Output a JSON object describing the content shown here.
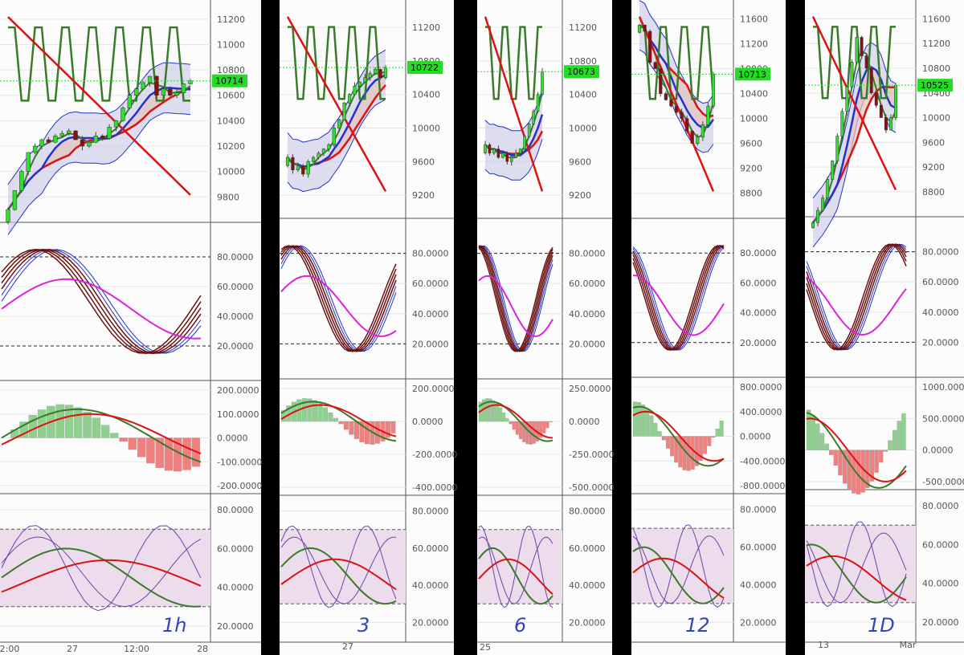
{
  "colors": {
    "background": "#000000",
    "panel": "#fcfcfc",
    "grid": "#e6e6e6",
    "text": "#555555",
    "green_candle": "#2ee02e",
    "red_candle": "#8b0f0f",
    "price_tag": "#22dd22",
    "green_line": "#3a7a2a",
    "red_line": "#dd1111",
    "blue_line": "#2233cc",
    "band_fill": "#c8c8e6",
    "ma_fill": "#e6c3bd",
    "osc_magenta": "#dd22dd",
    "osc_brown": "#6a1010",
    "hist_green": "#8fd08f",
    "hist_red": "#f08080",
    "hist_shadow": "#c98a80",
    "rsi_fill": "#ecdcec",
    "annotation": "#3344bb"
  },
  "charts": [
    {
      "id": "chart1",
      "timeframe_label": "1h",
      "x_ticks": [
        "2:00",
        "27",
        "12:00",
        "28"
      ],
      "price": {
        "ticks": [
          "11200",
          "11000",
          "10800",
          "10600",
          "10400",
          "10200",
          "10000",
          "9800"
        ],
        "current": "10714",
        "min": 9650,
        "max": 11300
      },
      "stoch": {
        "ticks": [
          "80.0000",
          "60.0000",
          "40.0000",
          "20.0000"
        ]
      },
      "macd": {
        "ticks": [
          "200.0000",
          "100.0000",
          "0.0000",
          "-100.0000",
          "-200.0000"
        ]
      },
      "rsi": {
        "ticks": [
          "80.0000",
          "60.0000",
          "40.0000",
          "20.0000"
        ]
      }
    },
    {
      "id": "chart2",
      "timeframe_label": "3",
      "x_ticks": [
        "27"
      ],
      "price": {
        "ticks": [
          "11200",
          "10800",
          "10400",
          "10000",
          "9600",
          "9200"
        ],
        "current": "10722",
        "min": 9000,
        "max": 11450
      },
      "stoch": {
        "ticks": [
          "80.0000",
          "60.0000",
          "40.0000",
          "20.0000"
        ]
      },
      "macd": {
        "ticks": [
          "200.0000",
          "0.0000",
          "-200.0000",
          "-400.0000"
        ]
      },
      "rsi": {
        "ticks": [
          "80.0000",
          "60.0000",
          "40.0000",
          "20.0000"
        ]
      }
    },
    {
      "id": "chart3",
      "timeframe_label": "6",
      "x_ticks": [
        "25"
      ],
      "price": {
        "ticks": [
          "11200",
          "10800",
          "10400",
          "10000",
          "9600",
          "9200"
        ],
        "current": "10673",
        "min": 9000,
        "max": 11450
      },
      "stoch": {
        "ticks": [
          "80.0000",
          "60.0000",
          "40.0000",
          "20.0000"
        ]
      },
      "macd": {
        "ticks": [
          "250.0000",
          "0.0000",
          "-250.0000",
          "-500.0000"
        ]
      },
      "rsi": {
        "ticks": [
          "80.0000",
          "60.0000",
          "40.0000",
          "20.0000"
        ]
      }
    },
    {
      "id": "chart4",
      "timeframe_label": "12",
      "x_ticks": [],
      "price": {
        "ticks": [
          "11600",
          "11200",
          "10800",
          "10400",
          "10000",
          "9600",
          "9200",
          "8800"
        ],
        "current": "10713",
        "min": 8500,
        "max": 11800
      },
      "stoch": {
        "ticks": [
          "80.0000",
          "60.0000",
          "40.0000",
          "20.0000"
        ]
      },
      "macd": {
        "ticks": [
          "800.0000",
          "400.0000",
          "0.0000",
          "-400.0000",
          "-800.0000"
        ]
      },
      "rsi": {
        "ticks": [
          "80.0000",
          "60.0000",
          "40.0000",
          "20.0000"
        ]
      }
    },
    {
      "id": "chart5",
      "timeframe_label": "1D",
      "x_ticks": [
        "13",
        "Mar"
      ],
      "price": {
        "ticks": [
          "11600",
          "11200",
          "10800",
          "10400",
          "10000",
          "9600",
          "9200",
          "8800"
        ],
        "current": "10525",
        "min": 8500,
        "max": 11800
      },
      "stoch": {
        "ticks": [
          "80.0000",
          "60.0000",
          "40.0000",
          "20.0000"
        ]
      },
      "macd": {
        "ticks": [
          "1000.0000",
          "500.0000",
          "0.0000",
          "-500.0000"
        ]
      },
      "rsi": {
        "ticks": [
          "80.0000",
          "60.0000",
          "40.0000",
          "20.0000"
        ]
      }
    }
  ],
  "chart_data": [
    {
      "type": "line",
      "timeframe": "1h",
      "price_last": 10714,
      "ylim": [
        9650,
        11300
      ],
      "close": [
        9700,
        9850,
        10000,
        10150,
        10200,
        10250,
        10230,
        10280,
        10300,
        10320,
        10250,
        10200,
        10230,
        10280,
        10260,
        10350,
        10400,
        10500,
        10600,
        10650,
        10700,
        10750,
        10600,
        10650,
        10600,
        10620,
        10690,
        10714
      ]
    },
    {
      "type": "line",
      "timeframe": "3h",
      "price_last": 10722,
      "ylim": [
        9000,
        11450
      ],
      "close": [
        9650,
        9500,
        9550,
        9450,
        9600,
        9650,
        9700,
        9750,
        9800,
        10000,
        10100,
        10300,
        10400,
        10500,
        10550,
        10600,
        10650,
        10700,
        10600,
        10722
      ]
    },
    {
      "type": "line",
      "timeframe": "6h",
      "price_last": 10673,
      "ylim": [
        9000,
        11450
      ],
      "close": [
        9800,
        9700,
        9750,
        9650,
        9700,
        9600,
        9650,
        9700,
        9750,
        9900,
        10050,
        10200,
        10400,
        10673
      ]
    },
    {
      "type": "line",
      "timeframe": "12h",
      "price_last": 10713,
      "ylim": [
        8500,
        11800
      ],
      "close": [
        11500,
        11400,
        10900,
        10800,
        10400,
        10300,
        10200,
        10100,
        10000,
        9800,
        9600,
        9700,
        9900,
        10200,
        10713
      ]
    },
    {
      "type": "line",
      "timeframe": "1D",
      "price_last": 10525,
      "ylim": [
        8500,
        11800
      ],
      "close": [
        8300,
        8500,
        8700,
        9000,
        9300,
        9700,
        10100,
        10500,
        10900,
        11300,
        11000,
        10800,
        10400,
        10200,
        10000,
        9800,
        10000,
        10525
      ]
    }
  ]
}
